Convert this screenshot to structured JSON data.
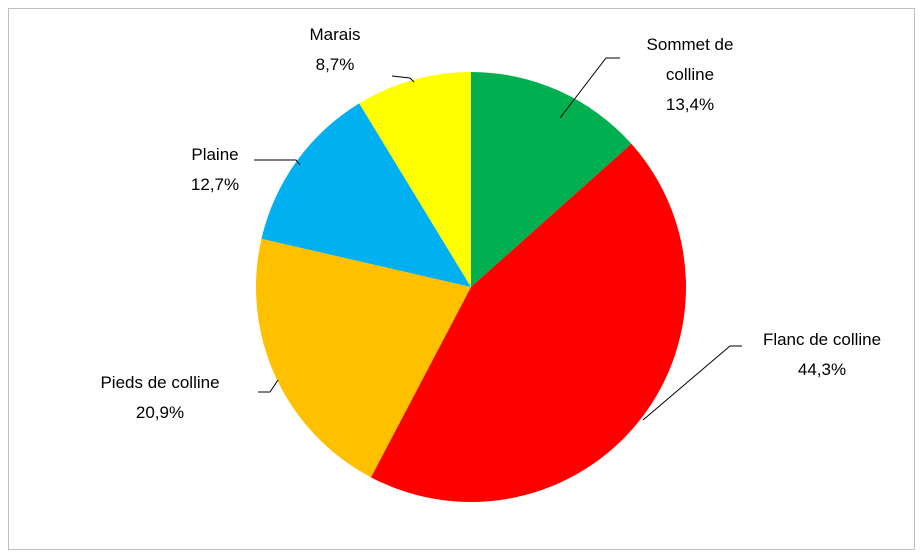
{
  "chart_data": {
    "type": "pie",
    "categories": [
      "Sommet de colline",
      "Flanc de colline",
      "Pieds de colline",
      "Plaine",
      "Marais"
    ],
    "values": [
      13.4,
      44.3,
      20.9,
      12.7,
      8.7
    ],
    "value_labels": [
      "13,4%",
      "44,3%",
      "20,9%",
      "12,7%",
      "8,7%"
    ],
    "colors": [
      "#00b050",
      "#ff0000",
      "#ffc000",
      "#00b0f0",
      "#ffff00"
    ]
  }
}
